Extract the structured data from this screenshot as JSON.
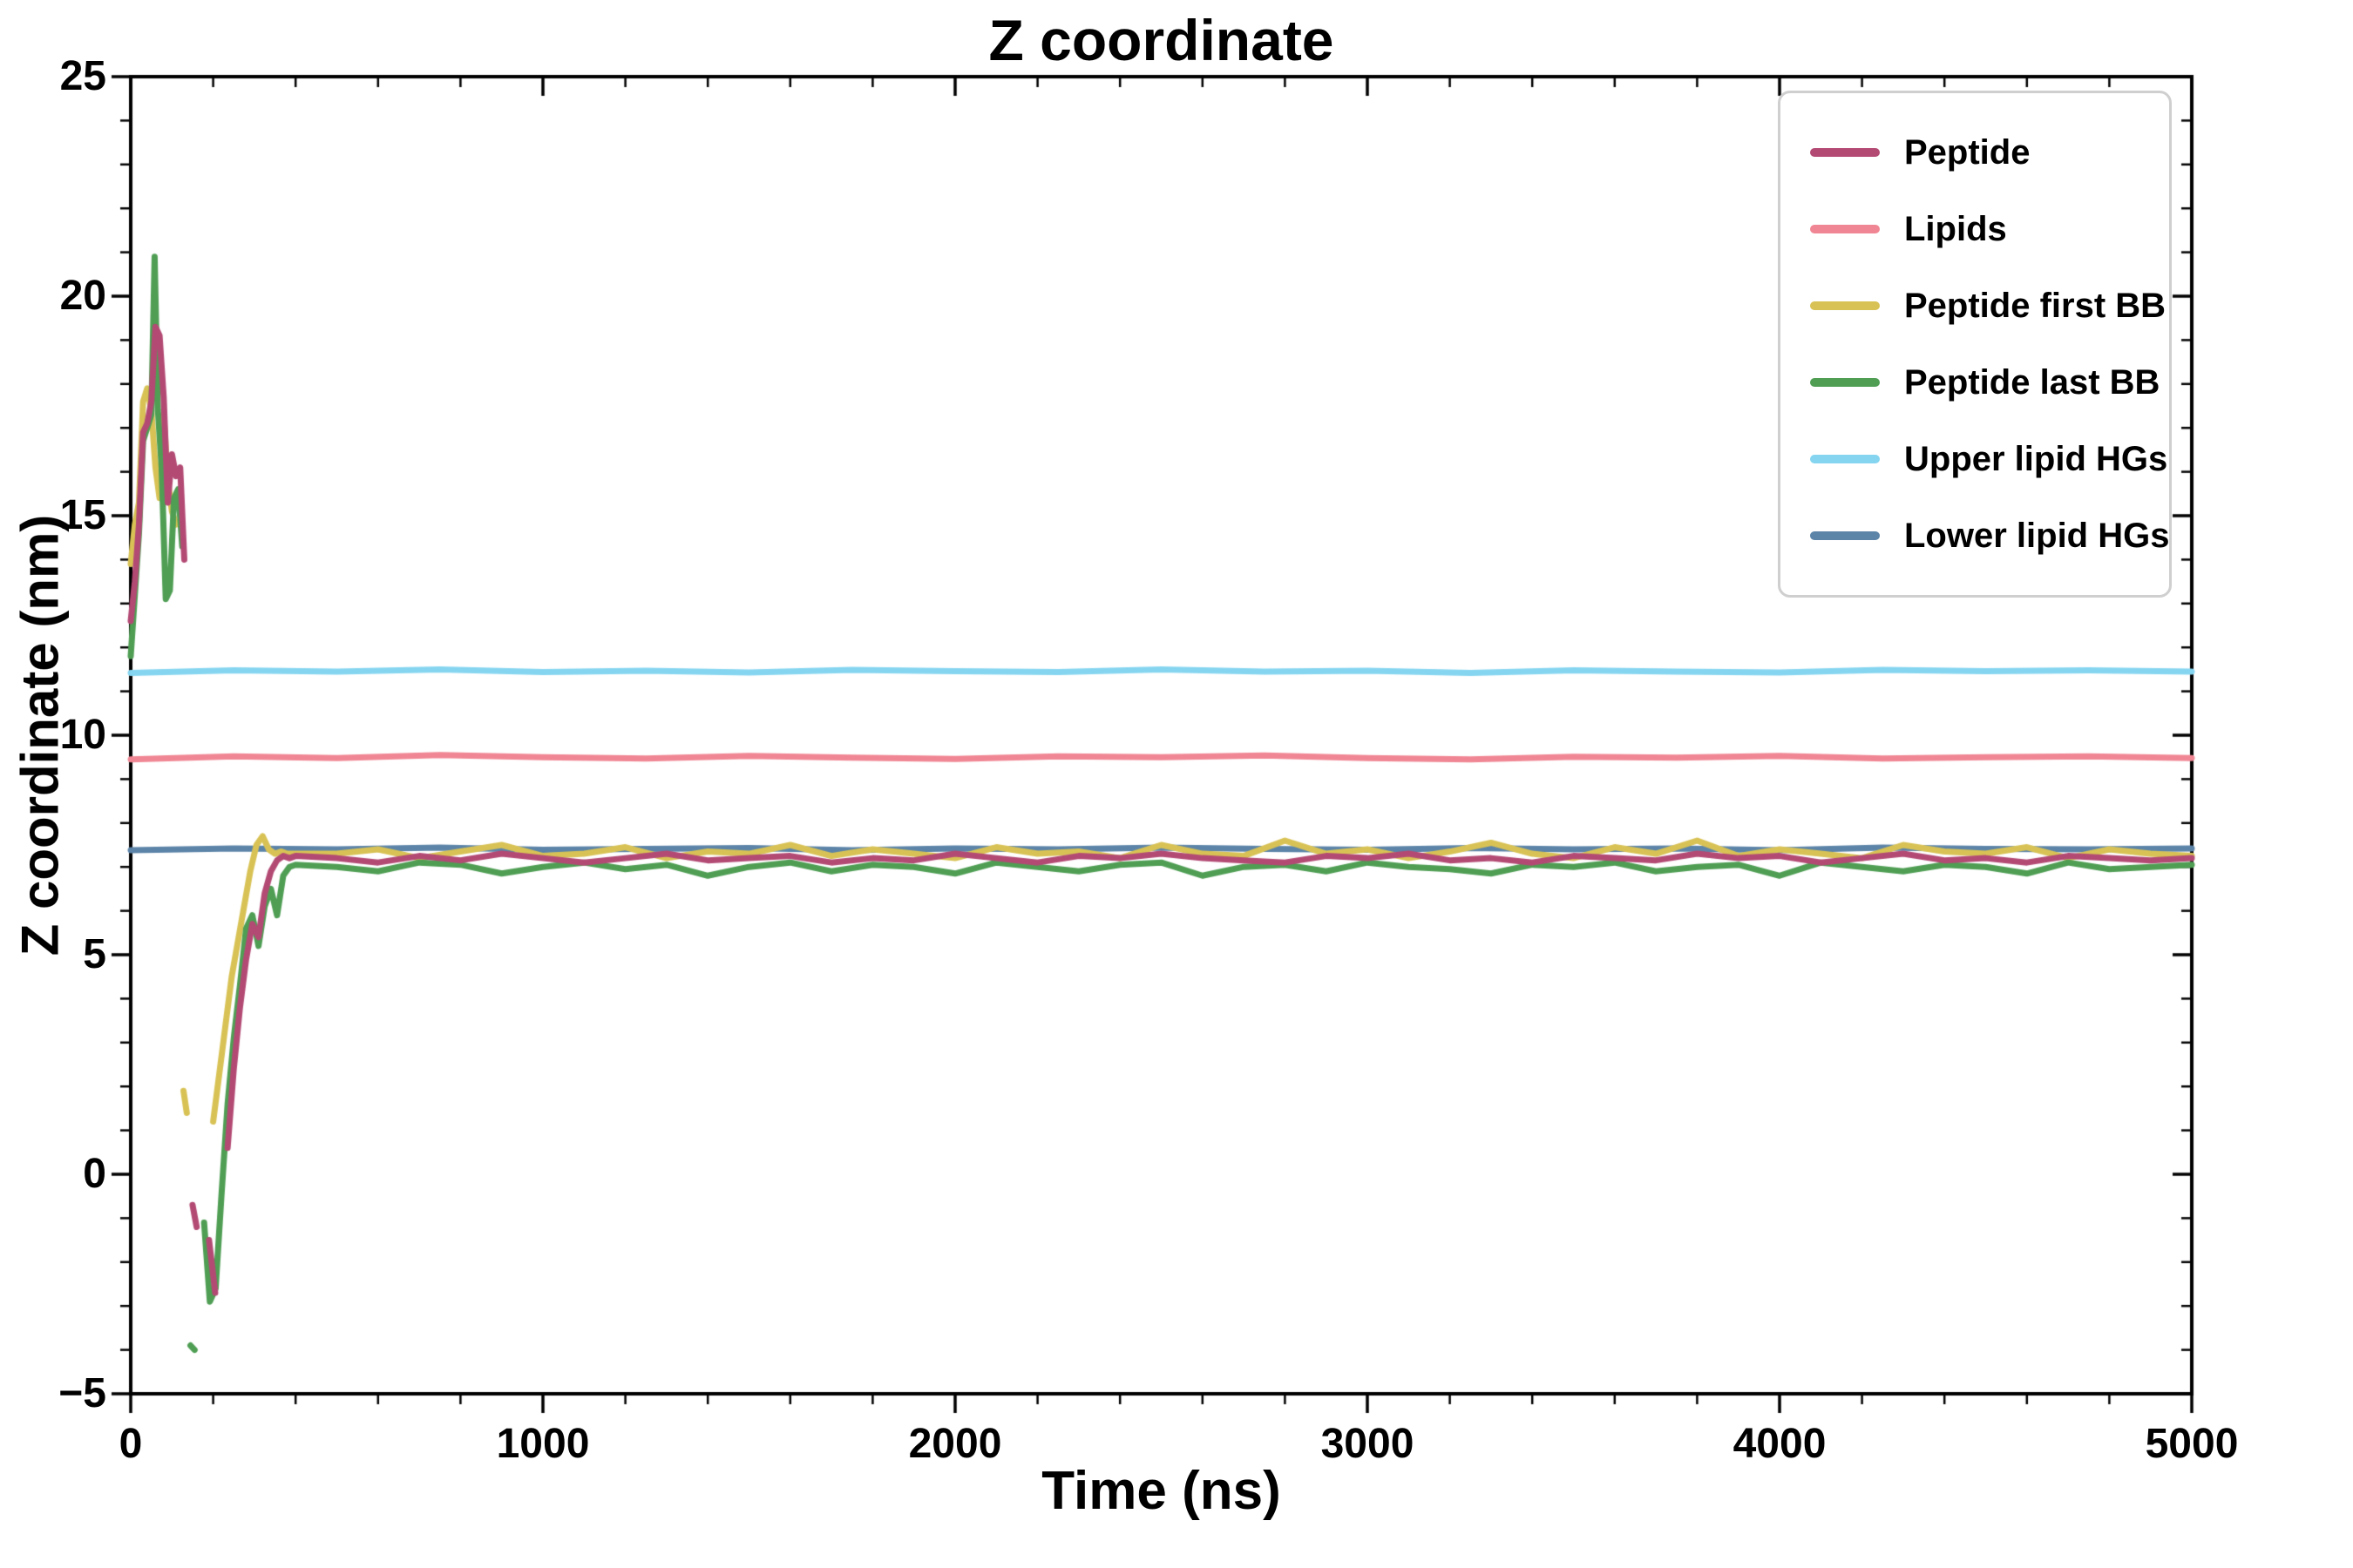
{
  "chart_data": {
    "type": "line",
    "title": "Z coordinate",
    "xlabel": "Time (ns)",
    "ylabel": "Z coordinate (nm)",
    "xlim": [
      0,
      5000
    ],
    "ylim": [
      -5,
      25
    ],
    "xticks": [
      0,
      1000,
      2000,
      3000,
      4000,
      5000
    ],
    "yticks": [
      -5,
      0,
      5,
      10,
      15,
      20,
      25
    ],
    "x_minor_step": 200,
    "y_minor_step": 1,
    "grid": false,
    "legend_position": "upper right",
    "draw_order": [
      "Upper lipid HGs",
      "Lower lipid HGs",
      "Lipids",
      "Peptide first BB",
      "Peptide last BB",
      "Peptide"
    ],
    "series": [
      {
        "name": "Peptide",
        "color": "#b34a74",
        "linewidth": 7,
        "x": [
          0,
          10,
          20,
          30,
          40,
          50,
          60,
          70,
          80,
          90,
          100,
          110,
          120,
          130,
          140,
          150,
          160,
          175,
          190,
          205,
          220,
          235,
          250,
          265,
          280,
          295,
          310,
          325,
          340,
          355,
          370,
          385,
          400,
          500,
          600,
          700,
          800,
          900,
          1000,
          1100,
          1200,
          1300,
          1400,
          1500,
          1600,
          1700,
          1800,
          1900,
          2000,
          2100,
          2200,
          2300,
          2400,
          2500,
          2600,
          2700,
          2800,
          2900,
          3000,
          3100,
          3200,
          3300,
          3400,
          3500,
          3600,
          3700,
          3800,
          3900,
          4000,
          4100,
          4200,
          4300,
          4400,
          4500,
          4600,
          4700,
          4800,
          4900,
          5000
        ],
        "y": [
          12.6,
          13.5,
          14.8,
          16.9,
          17.1,
          17.6,
          19.3,
          19.1,
          17.7,
          15.3,
          16.4,
          15.9,
          16.1,
          14.0,
          null,
          -0.7,
          -1.2,
          null,
          -1.5,
          -2.7,
          null,
          0.6,
          2.4,
          3.8,
          4.9,
          5.7,
          5.4,
          6.4,
          6.9,
          7.15,
          7.25,
          7.2,
          7.25,
          7.2,
          7.1,
          7.25,
          7.15,
          7.3,
          7.2,
          7.1,
          7.2,
          7.3,
          7.15,
          7.2,
          7.25,
          7.1,
          7.2,
          7.15,
          7.3,
          7.2,
          7.1,
          7.25,
          7.2,
          7.3,
          7.2,
          7.15,
          7.1,
          7.25,
          7.2,
          7.3,
          7.15,
          7.2,
          7.1,
          7.25,
          7.2,
          7.15,
          7.3,
          7.2,
          7.25,
          7.1,
          7.2,
          7.3,
          7.15,
          7.2,
          7.1,
          7.25,
          7.2,
          7.15,
          7.2
        ]
      },
      {
        "name": "Lipids",
        "color": "#f08693",
        "linewidth": 7,
        "x": [
          0,
          250,
          500,
          750,
          1000,
          1250,
          1500,
          1750,
          2000,
          2250,
          2500,
          2750,
          3000,
          3250,
          3500,
          3750,
          4000,
          4250,
          4500,
          4750,
          5000
        ],
        "y": [
          9.45,
          9.52,
          9.48,
          9.55,
          9.5,
          9.47,
          9.53,
          9.49,
          9.46,
          9.52,
          9.5,
          9.54,
          9.48,
          9.45,
          9.51,
          9.49,
          9.53,
          9.47,
          9.5,
          9.52,
          9.48
        ]
      },
      {
        "name": "Peptide first BB",
        "color": "#d8c255",
        "linewidth": 7,
        "x": [
          0,
          10,
          20,
          30,
          40,
          50,
          60,
          70,
          80,
          90,
          100,
          110,
          120,
          128,
          136,
          144,
          152,
          162,
          172,
          185,
          200,
          215,
          230,
          245,
          260,
          275,
          290,
          305,
          320,
          335,
          350,
          365,
          380,
          400,
          500,
          600,
          700,
          800,
          900,
          1000,
          1100,
          1200,
          1300,
          1400,
          1500,
          1600,
          1700,
          1800,
          1900,
          2000,
          2100,
          2200,
          2300,
          2400,
          2500,
          2600,
          2700,
          2800,
          2900,
          3000,
          3100,
          3200,
          3300,
          3400,
          3500,
          3600,
          3700,
          3800,
          3900,
          4000,
          4100,
          4200,
          4300,
          4400,
          4500,
          4600,
          4700,
          4800,
          4900,
          5000
        ],
        "y": [
          13.9,
          14.8,
          15.3,
          17.6,
          17.9,
          17.4,
          16.1,
          15.4,
          17.3,
          15.8,
          15.1,
          14.8,
          null,
          1.9,
          1.4,
          null,
          0.4,
          null,
          -0.2,
          null,
          1.2,
          2.3,
          3.4,
          4.5,
          5.3,
          6.1,
          6.9,
          7.5,
          7.7,
          7.4,
          7.3,
          7.35,
          7.3,
          7.3,
          7.3,
          7.4,
          7.2,
          7.35,
          7.5,
          7.25,
          7.3,
          7.45,
          7.2,
          7.35,
          7.3,
          7.5,
          7.25,
          7.4,
          7.3,
          7.2,
          7.45,
          7.3,
          7.35,
          7.2,
          7.5,
          7.3,
          7.25,
          7.6,
          7.3,
          7.4,
          7.2,
          7.35,
          7.55,
          7.3,
          7.2,
          7.45,
          7.3,
          7.6,
          7.25,
          7.4,
          7.3,
          7.2,
          7.5,
          7.35,
          7.3,
          7.45,
          7.2,
          7.4,
          7.3,
          7.25
        ]
      },
      {
        "name": "Peptide last BB",
        "color": "#4f9e54",
        "linewidth": 7,
        "x": [
          0,
          10,
          20,
          30,
          40,
          50,
          58,
          66,
          75,
          85,
          95,
          105,
          115,
          125,
          135,
          145,
          155,
          165,
          178,
          192,
          206,
          220,
          235,
          250,
          265,
          280,
          295,
          310,
          325,
          340,
          355,
          370,
          385,
          400,
          500,
          600,
          700,
          800,
          900,
          1000,
          1100,
          1200,
          1300,
          1400,
          1500,
          1600,
          1700,
          1800,
          1900,
          2000,
          2100,
          2200,
          2300,
          2400,
          2500,
          2600,
          2700,
          2800,
          2900,
          3000,
          3100,
          3200,
          3300,
          3400,
          3500,
          3600,
          3700,
          3800,
          3900,
          4000,
          4100,
          4200,
          4300,
          4400,
          4500,
          4600,
          4700,
          4800,
          4900,
          5000
        ],
        "y": [
          11.8,
          13.2,
          14.6,
          16.7,
          17.0,
          17.3,
          20.9,
          17.4,
          16.1,
          13.1,
          13.3,
          15.4,
          15.6,
          14.3,
          null,
          -3.9,
          -4.0,
          null,
          -1.1,
          -2.9,
          -2.6,
          -0.5,
          1.6,
          3.1,
          4.3,
          5.6,
          5.9,
          5.2,
          6.1,
          6.5,
          5.9,
          6.8,
          7.0,
          7.05,
          7.0,
          6.9,
          7.1,
          7.05,
          6.85,
          7.0,
          7.1,
          6.95,
          7.05,
          6.8,
          7.0,
          7.1,
          6.9,
          7.05,
          7.0,
          6.85,
          7.1,
          7.0,
          6.9,
          7.05,
          7.1,
          6.8,
          7.0,
          7.05,
          6.9,
          7.1,
          7.0,
          6.95,
          6.85,
          7.05,
          7.0,
          7.1,
          6.9,
          7.0,
          7.05,
          6.8,
          7.1,
          7.0,
          6.9,
          7.05,
          7.0,
          6.85,
          7.1,
          6.95,
          7.0,
          7.05
        ]
      },
      {
        "name": "Upper lipid HGs",
        "color": "#85d5f0",
        "linewidth": 7,
        "x": [
          0,
          250,
          500,
          750,
          1000,
          1250,
          1500,
          1750,
          2000,
          2250,
          2500,
          2750,
          3000,
          3250,
          3500,
          3750,
          4000,
          4250,
          4500,
          4750,
          5000
        ],
        "y": [
          11.42,
          11.48,
          11.45,
          11.5,
          11.44,
          11.47,
          11.43,
          11.49,
          11.46,
          11.44,
          11.5,
          11.45,
          11.47,
          11.42,
          11.48,
          11.45,
          11.43,
          11.49,
          11.46,
          11.48,
          11.45
        ]
      },
      {
        "name": "Lower lipid HGs",
        "color": "#5c84a8",
        "linewidth": 7,
        "x": [
          0,
          250,
          500,
          750,
          1000,
          1250,
          1500,
          1750,
          2000,
          2250,
          2500,
          2750,
          3000,
          3250,
          3500,
          3750,
          4000,
          4250,
          4500,
          4750,
          5000
        ],
        "y": [
          7.38,
          7.42,
          7.4,
          7.44,
          7.39,
          7.41,
          7.43,
          7.38,
          7.42,
          7.4,
          7.44,
          7.41,
          7.39,
          7.43,
          7.4,
          7.42,
          7.38,
          7.44,
          7.41,
          7.4,
          7.42
        ]
      }
    ]
  }
}
